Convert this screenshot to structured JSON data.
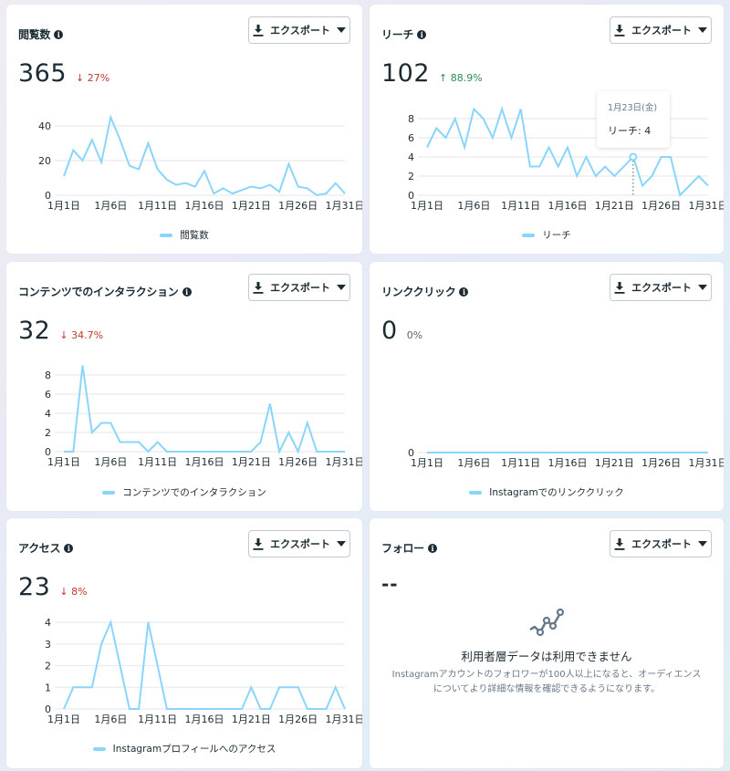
{
  "export_label": "エクスポート",
  "cards": {
    "views": {
      "title": "閲覧数",
      "value": "365",
      "change": "↓ 27%",
      "legend": "閲覧数"
    },
    "reach": {
      "title": "リーチ",
      "value": "102",
      "change": "↑ 88.9%",
      "legend": "リーチ",
      "tooltip": {
        "date": "1月23日(金)",
        "value": "リーチ: 4"
      }
    },
    "interactions": {
      "title": "コンテンツでのインタラクション",
      "value": "32",
      "change": "↓ 34.7%",
      "legend": "コンテンツでのインタラクション"
    },
    "link_clicks": {
      "title": "リンククリック",
      "value": "0",
      "change": "0%",
      "legend": "Instagramでのリンククリック"
    },
    "access": {
      "title": "アクセス",
      "value": "23",
      "change": "↓ 8%",
      "legend": "Instagramプロフィールへのアクセス"
    },
    "follows": {
      "title": "フォロー",
      "value": "--",
      "nodata_title": "利用者層データは利用できません",
      "nodata_desc": "Instagramアカウントのフォロワーが100人以上になると、オーディエンスについてより詳細な情報を確認できるようになります。"
    }
  },
  "colors": {
    "line": "#8ad5fb",
    "down": "#c0392b",
    "up": "#2e8b57",
    "grid": "#e9ebee"
  },
  "x_tick_labels": [
    "1月1日",
    "1月6日",
    "1月11日",
    "1月16日",
    "1月21日",
    "1月26日",
    "1月31日"
  ],
  "chart_data": [
    {
      "type": "line",
      "title": "閲覧数",
      "x": [
        "1月1日",
        "1月2日",
        "1月3日",
        "1月4日",
        "1月5日",
        "1月6日",
        "1月7日",
        "1月8日",
        "1月9日",
        "1月10日",
        "1月11日",
        "1月12日",
        "1月13日",
        "1月14日",
        "1月15日",
        "1月16日",
        "1月17日",
        "1月18日",
        "1月19日",
        "1月20日",
        "1月21日",
        "1月22日",
        "1月23日",
        "1月24日",
        "1月25日",
        "1月26日",
        "1月27日",
        "1月28日",
        "1月29日",
        "1月30日",
        "1月31日"
      ],
      "series": [
        {
          "name": "閲覧数",
          "values": [
            11,
            26,
            20,
            32,
            19,
            45,
            32,
            17,
            15,
            30,
            15,
            9,
            6,
            7,
            5,
            14,
            1,
            4,
            1,
            3,
            5,
            4,
            6,
            2,
            18,
            5,
            4,
            0,
            1,
            7,
            1
          ]
        }
      ],
      "yticks": [
        0,
        20,
        40
      ],
      "ylim": [
        0,
        45
      ],
      "legend": [
        "閲覧数"
      ]
    },
    {
      "type": "line",
      "title": "リーチ",
      "x": [
        "1月1日",
        "1月2日",
        "1月3日",
        "1月4日",
        "1月5日",
        "1月6日",
        "1月7日",
        "1月8日",
        "1月9日",
        "1月10日",
        "1月11日",
        "1月12日",
        "1月13日",
        "1月14日",
        "1月15日",
        "1月16日",
        "1月17日",
        "1月18日",
        "1月19日",
        "1月20日",
        "1月21日",
        "1月22日",
        "1月23日",
        "1月24日",
        "1月25日",
        "1月26日",
        "1月27日",
        "1月28日",
        "1月29日",
        "1月30日",
        "1月31日"
      ],
      "series": [
        {
          "name": "リーチ",
          "values": [
            5,
            7,
            6,
            8,
            5,
            9,
            8,
            6,
            9,
            6,
            9,
            3,
            3,
            5,
            3,
            5,
            2,
            4,
            2,
            3,
            2,
            3,
            4,
            1,
            2,
            4,
            4,
            0,
            1,
            2,
            1
          ]
        }
      ],
      "yticks": [
        0,
        2,
        4,
        6,
        8
      ],
      "ylim": [
        0,
        9
      ],
      "legend": [
        "リーチ"
      ],
      "annotations": [
        {
          "x": "1月23日",
          "label": "1月23日(金) リーチ: 4"
        }
      ]
    },
    {
      "type": "line",
      "title": "コンテンツでのインタラクション",
      "x": [
        "1月1日",
        "1月2日",
        "1月3日",
        "1月4日",
        "1月5日",
        "1月6日",
        "1月7日",
        "1月8日",
        "1月9日",
        "1月10日",
        "1月11日",
        "1月12日",
        "1月13日",
        "1月14日",
        "1月15日",
        "1月16日",
        "1月17日",
        "1月18日",
        "1月19日",
        "1月20日",
        "1月21日",
        "1月22日",
        "1月23日",
        "1月24日",
        "1月25日",
        "1月26日",
        "1月27日",
        "1月28日",
        "1月29日",
        "1月30日",
        "1月31日"
      ],
      "series": [
        {
          "name": "コンテンツでのインタラクション",
          "values": [
            0,
            0,
            9,
            2,
            3,
            3,
            1,
            1,
            1,
            0,
            1,
            0,
            0,
            0,
            0,
            0,
            0,
            0,
            0,
            0,
            0,
            1,
            5,
            0,
            2,
            0,
            3,
            0,
            0,
            0,
            0
          ]
        }
      ],
      "yticks": [
        0,
        2,
        4,
        6,
        8
      ],
      "ylim": [
        0,
        9
      ],
      "legend": [
        "コンテンツでのインタラクション"
      ]
    },
    {
      "type": "line",
      "title": "リンククリック",
      "x": [
        "1月1日",
        "1月2日",
        "1月3日",
        "1月4日",
        "1月5日",
        "1月6日",
        "1月7日",
        "1月8日",
        "1月9日",
        "1月10日",
        "1月11日",
        "1月12日",
        "1月13日",
        "1月14日",
        "1月15日",
        "1月16日",
        "1月17日",
        "1月18日",
        "1月19日",
        "1月20日",
        "1月21日",
        "1月22日",
        "1月23日",
        "1月24日",
        "1月25日",
        "1月26日",
        "1月27日",
        "1月28日",
        "1月29日",
        "1月30日",
        "1月31日"
      ],
      "series": [
        {
          "name": "Instagramでのリンククリック",
          "values": [
            0,
            0,
            0,
            0,
            0,
            0,
            0,
            0,
            0,
            0,
            0,
            0,
            0,
            0,
            0,
            0,
            0,
            0,
            0,
            0,
            0,
            0,
            0,
            0,
            0,
            0,
            0,
            0,
            0,
            0,
            0
          ]
        }
      ],
      "yticks": [
        0
      ],
      "ylim": [
        0,
        0
      ],
      "legend": [
        "Instagramでのリンククリック"
      ]
    },
    {
      "type": "line",
      "title": "アクセス",
      "x": [
        "1月1日",
        "1月2日",
        "1月3日",
        "1月4日",
        "1月5日",
        "1月6日",
        "1月7日",
        "1月8日",
        "1月9日",
        "1月10日",
        "1月11日",
        "1月12日",
        "1月13日",
        "1月14日",
        "1月15日",
        "1月16日",
        "1月17日",
        "1月18日",
        "1月19日",
        "1月20日",
        "1月21日",
        "1月22日",
        "1月23日",
        "1月24日",
        "1月25日",
        "1月26日",
        "1月27日",
        "1月28日",
        "1月29日",
        "1月30日",
        "1月31日"
      ],
      "series": [
        {
          "name": "Instagramプロフィールへのアクセス",
          "values": [
            0,
            1,
            1,
            1,
            3,
            4,
            2,
            0,
            0,
            4,
            2,
            0,
            0,
            0,
            0,
            0,
            0,
            0,
            0,
            0,
            1,
            0,
            0,
            1,
            1,
            1,
            0,
            0,
            0,
            1,
            0
          ]
        }
      ],
      "yticks": [
        0,
        1,
        2,
        3,
        4
      ],
      "ylim": [
        0,
        4
      ],
      "legend": [
        "Instagramプロフィールへのアクセス"
      ]
    }
  ]
}
